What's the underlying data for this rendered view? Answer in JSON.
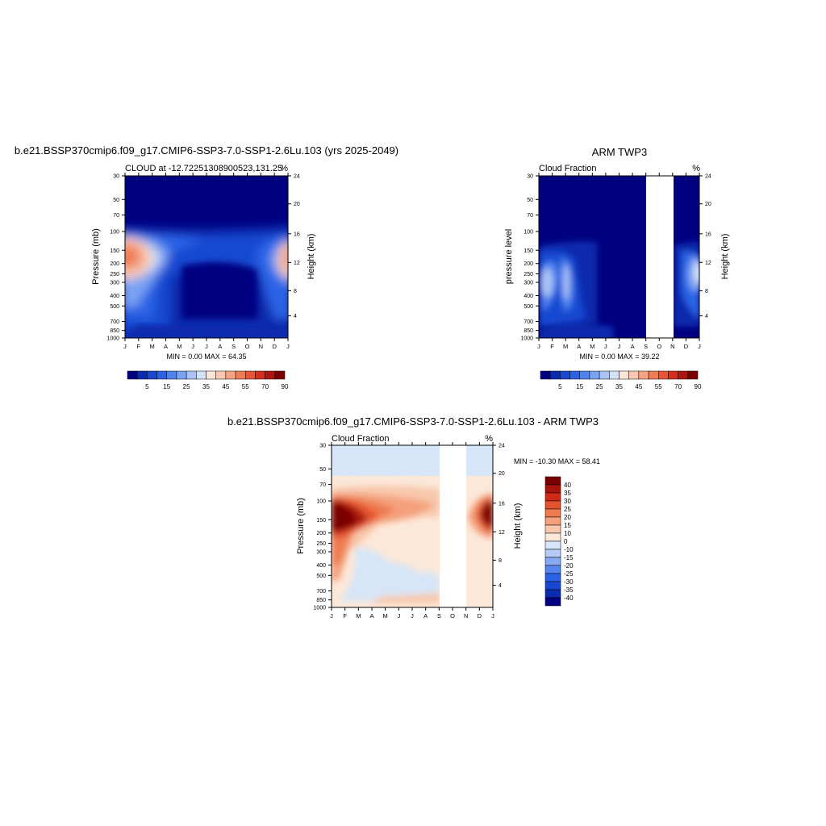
{
  "months": [
    "J",
    "F",
    "M",
    "A",
    "M",
    "J",
    "J",
    "A",
    "S",
    "O",
    "N",
    "D",
    "J"
  ],
  "pressure_ticks": [
    "30",
    "50",
    "70",
    "100",
    "150",
    "200",
    "250",
    "300",
    "400",
    "500",
    "700",
    "850",
    "1000"
  ],
  "height_ticks": [
    "24",
    "20",
    "16",
    "12",
    "8",
    "4"
  ],
  "colors": {
    "seq": [
      "#000080",
      "#0b2bae",
      "#1848d2",
      "#2c63e6",
      "#4e82ef",
      "#7aa2f2",
      "#a8c2f4",
      "#d4e2f7",
      "#fbe7da",
      "#f8c8b0",
      "#f4a383",
      "#ef7b57",
      "#e85434",
      "#d52f1b",
      "#ad160d",
      "#7a0000"
    ],
    "div": [
      "#000080",
      "#0b2bae",
      "#1848d2",
      "#2c63e6",
      "#5586ee",
      "#86a9f2",
      "#b5cbf5",
      "#d6e6f8",
      "#fce8d8",
      "#f8c8ac",
      "#f4a07c",
      "#ee7a50",
      "#e5522e",
      "#d02a16",
      "#a8140b",
      "#7a0000"
    ]
  },
  "panel1": {
    "title": "b.e21.BSSP370cmip6.f09_g17.CMIP6-SSP3-7.0-SSP1-2.6Lu.103 (yrs 2025-2049)",
    "subtitle_left": "CLOUD at -12.72251308900523,131.25",
    "subtitle_right": "%",
    "ylabel_left": "Pressure (mb)",
    "ylabel_right": "Height (km)",
    "minmax": "MIN =   0.00 MAX =  64.35",
    "legend_labels": [
      "5",
      "15",
      "25",
      "35",
      "45",
      "55",
      "70",
      "90"
    ]
  },
  "panel2": {
    "title": "ARM TWP3",
    "subtitle_left": "Cloud Fraction",
    "subtitle_right": "%",
    "ylabel_left": "pressure level",
    "ylabel_right": "Height (km)",
    "minmax": "MIN =   0.00 MAX =  39.22",
    "legend_labels": [
      "5",
      "15",
      "25",
      "35",
      "45",
      "55",
      "70",
      "90"
    ]
  },
  "panel3": {
    "title": "b.e21.BSSP370cmip6.f09_g17.CMIP6-SSP3-7.0-SSP1-2.6Lu.103 - ARM TWP3",
    "subtitle_left": "Cloud Fraction",
    "subtitle_right": "%",
    "ylabel_left": "Pressure (mb)",
    "ylabel_right": "Height (km)",
    "minmax": "MIN = -10.30 MAX =  58.41",
    "legend_labels": [
      "40",
      "35",
      "30",
      "25",
      "20",
      "15",
      "10",
      "0",
      "-10",
      "-15",
      "-20",
      "-25",
      "-30",
      "-35",
      "-40"
    ]
  },
  "chart_data": [
    {
      "type": "heatmap",
      "title": "b.e21.BSSP370cmip6.f09_g17.CMIP6-SSP3-7.0-SSP1-2.6Lu.103 (yrs 2025-2049)",
      "subtitle": "CLOUD at -12.72251308900523,131.25",
      "xlabel": "",
      "ylabel": "Pressure (mb)",
      "y2label": "Height (km)",
      "units": "%",
      "x": [
        "J",
        "F",
        "M",
        "A",
        "M",
        "J",
        "J",
        "A",
        "S",
        "O",
        "N",
        "D",
        "J"
      ],
      "y": [
        30,
        50,
        70,
        100,
        150,
        200,
        250,
        300,
        400,
        500,
        700,
        850,
        1000
      ],
      "values": [
        [
          0,
          0,
          0,
          0,
          0,
          0,
          0,
          0,
          0,
          0,
          0,
          0,
          0
        ],
        [
          0,
          0,
          0,
          0,
          0,
          0,
          0,
          0,
          0,
          0,
          0,
          0,
          0
        ],
        [
          5,
          3,
          1,
          0,
          0,
          0,
          0,
          0,
          0,
          0,
          1,
          3,
          5
        ],
        [
          30,
          20,
          12,
          7,
          5,
          6,
          7,
          6,
          6,
          8,
          12,
          20,
          30
        ],
        [
          55,
          40,
          20,
          10,
          7,
          9,
          10,
          9,
          9,
          12,
          22,
          40,
          55
        ],
        [
          45,
          28,
          14,
          6,
          2,
          0,
          0,
          0,
          0,
          4,
          14,
          28,
          45
        ],
        [
          30,
          18,
          10,
          4,
          0,
          0,
          0,
          0,
          0,
          3,
          10,
          18,
          30
        ],
        [
          20,
          16,
          10,
          4,
          0,
          0,
          0,
          0,
          0,
          3,
          12,
          16,
          20
        ],
        [
          14,
          16,
          10,
          3,
          0,
          0,
          0,
          0,
          0,
          3,
          12,
          14,
          14
        ],
        [
          10,
          12,
          7,
          4,
          1,
          0,
          0,
          0,
          0,
          3,
          10,
          12,
          10
        ],
        [
          8,
          8,
          7,
          5,
          3,
          2,
          1,
          1,
          2,
          5,
          8,
          8,
          8
        ],
        [
          6,
          6,
          6,
          4,
          3,
          3,
          3,
          2,
          3,
          4,
          6,
          6,
          6
        ],
        [
          4,
          4,
          3,
          3,
          2,
          0,
          0,
          0,
          2,
          3,
          4,
          4,
          4
        ]
      ],
      "ylim": [
        1000,
        30
      ],
      "min": 0.0,
      "max": 64.35,
      "legend": [
        "5",
        "15",
        "25",
        "35",
        "45",
        "55",
        "70",
        "90"
      ]
    },
    {
      "type": "heatmap",
      "title": "ARM TWP3",
      "subtitle": "Cloud Fraction",
      "ylabel": "pressure level",
      "y2label": "Height (km)",
      "units": "%",
      "x": [
        "J",
        "F",
        "M",
        "A",
        "M",
        "J",
        "J",
        "A",
        "S",
        "O",
        "N",
        "D",
        "J"
      ],
      "y": [
        30,
        50,
        70,
        100,
        150,
        200,
        250,
        300,
        400,
        500,
        700,
        850,
        1000
      ],
      "values": [
        [
          0,
          0,
          0,
          0,
          0,
          0,
          0,
          0,
          null,
          null,
          0,
          0,
          0
        ],
        [
          0,
          0,
          0,
          0,
          0,
          0,
          0,
          0,
          null,
          null,
          0,
          0,
          0
        ],
        [
          0,
          0,
          0,
          0,
          0,
          0,
          0,
          0,
          null,
          null,
          0,
          0,
          0
        ],
        [
          1,
          1,
          2,
          1,
          0,
          0,
          0,
          0,
          null,
          null,
          0,
          1,
          1
        ],
        [
          8,
          5,
          6,
          4,
          1,
          0,
          0,
          0,
          null,
          null,
          2,
          8,
          12
        ],
        [
          20,
          10,
          14,
          6,
          2,
          1,
          0,
          0,
          null,
          null,
          4,
          18,
          25
        ],
        [
          28,
          12,
          18,
          7,
          2,
          1,
          0,
          0,
          null,
          null,
          4,
          22,
          30
        ],
        [
          22,
          10,
          20,
          8,
          3,
          1,
          0,
          0,
          null,
          null,
          4,
          18,
          22
        ],
        [
          12,
          10,
          18,
          9,
          3,
          1,
          0,
          0,
          null,
          null,
          4,
          12,
          12
        ],
        [
          8,
          9,
          14,
          8,
          3,
          1,
          0,
          0,
          null,
          null,
          3,
          8,
          8
        ],
        [
          6,
          6,
          8,
          6,
          3,
          2,
          1,
          1,
          null,
          null,
          3,
          6,
          6
        ],
        [
          4,
          5,
          6,
          5,
          5,
          3,
          2,
          1,
          null,
          null,
          3,
          5,
          4
        ],
        [
          2,
          2,
          2,
          2,
          2,
          1,
          1,
          1,
          null,
          null,
          2,
          2,
          2
        ]
      ],
      "ylim": [
        1000,
        30
      ],
      "min": 0.0,
      "max": 39.22,
      "legend": [
        "5",
        "15",
        "25",
        "35",
        "45",
        "55",
        "70",
        "90"
      ]
    },
    {
      "type": "heatmap",
      "title": "b.e21.BSSP370cmip6.f09_g17.CMIP6-SSP3-7.0-SSP1-2.6Lu.103 - ARM TWP3",
      "subtitle": "Cloud Fraction",
      "ylabel": "Pressure (mb)",
      "y2label": "Height (km)",
      "units": "%",
      "x": [
        "J",
        "F",
        "M",
        "A",
        "M",
        "J",
        "J",
        "A",
        "S",
        "O",
        "N",
        "D",
        "J"
      ],
      "y": [
        30,
        50,
        70,
        100,
        150,
        200,
        250,
        300,
        400,
        500,
        700,
        850,
        1000
      ],
      "values": [
        [
          -3,
          -3,
          -3,
          -3,
          -3,
          -3,
          -3,
          -3,
          null,
          null,
          -3,
          -3,
          -3
        ],
        [
          2,
          2,
          2,
          2,
          2,
          2,
          2,
          2,
          null,
          null,
          2,
          2,
          2
        ],
        [
          4,
          4,
          4,
          4,
          4,
          4,
          4,
          4,
          null,
          null,
          4,
          4,
          4
        ],
        [
          40,
          30,
          15,
          10,
          8,
          7,
          8,
          8,
          null,
          null,
          10,
          22,
          42
        ],
        [
          50,
          40,
          25,
          15,
          12,
          12,
          12,
          10,
          null,
          null,
          15,
          35,
          50
        ],
        [
          20,
          18,
          10,
          4,
          2,
          1,
          1,
          1,
          null,
          null,
          8,
          15,
          20
        ],
        [
          8,
          6,
          3,
          0,
          0,
          0,
          0,
          0,
          null,
          null,
          3,
          6,
          8
        ],
        [
          5,
          -2,
          -2,
          -3,
          -3,
          -3,
          -3,
          -3,
          null,
          null,
          2,
          4,
          5
        ],
        [
          3,
          -2,
          -3,
          -3,
          -3,
          -3,
          -3,
          -3,
          null,
          null,
          3,
          3,
          3
        ],
        [
          3,
          2,
          -3,
          -3,
          -2,
          -3,
          -3,
          -3,
          null,
          null,
          3,
          3,
          3
        ],
        [
          2,
          2,
          -3,
          -3,
          -3,
          -3,
          -3,
          -3,
          null,
          null,
          2,
          2,
          2
        ],
        [
          1,
          1,
          1,
          1,
          1,
          2,
          2,
          1,
          null,
          null,
          1,
          1,
          1
        ],
        [
          -2,
          -2,
          -2,
          -2,
          -2,
          -2,
          -2,
          -2,
          null,
          null,
          -2,
          -2,
          -2
        ]
      ],
      "ylim": [
        1000,
        30
      ],
      "min": -10.3,
      "max": 58.41,
      "legend": [
        "40",
        "35",
        "30",
        "25",
        "20",
        "15",
        "10",
        "0",
        "-10",
        "-15",
        "-20",
        "-25",
        "-30",
        "-35",
        "-40"
      ]
    }
  ]
}
